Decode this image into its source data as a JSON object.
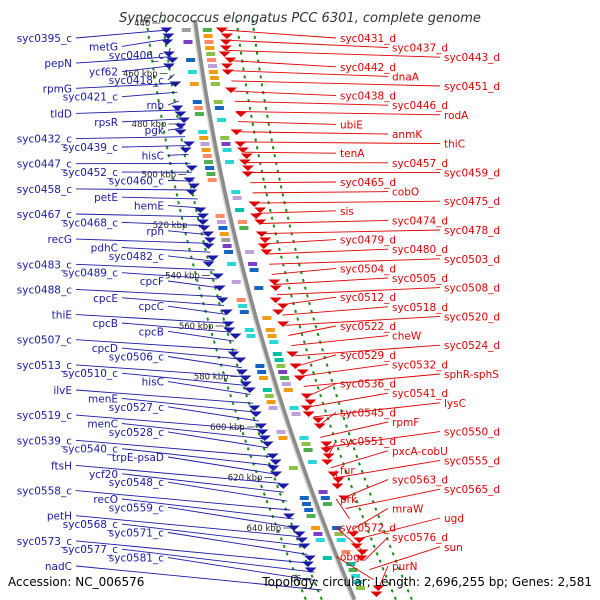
{
  "title": "Synechococcus elongatus PCC 6301, complete genome",
  "accession_text": "Accession: NC_006576",
  "summary_text": "Topology: circular; Length: 2,696,255 bp; Genes: 2,581",
  "colors": {
    "minus_strand": "#1a1aa6",
    "plus_strand": "#e00000",
    "backbone": "#8c8c8c",
    "track_border": "#1a8a1a"
  },
  "ticks": [
    "440",
    "460 kbp",
    "480 kbp",
    "500 kbp",
    "520 kbp",
    "540 kbp",
    "560 kbp",
    "580 kbp",
    "600 kbp",
    "620 kbp",
    "640 kbp",
    "66"
  ],
  "left_genes": [
    "syc0395_c",
    "metG",
    "syc0406_c",
    "pepN",
    "ycf62",
    "syc0418_c",
    "rpmG",
    "syc0421_c",
    "rnb",
    "tldD",
    "rpsR",
    "pgk",
    "syc0432_c",
    "syc0439_c",
    "hisC",
    "syc0447_c",
    "syc0452_c",
    "syc0460_c",
    "syc0458_c",
    "petE",
    "hemE",
    "syc0467_c",
    "syc0468_c",
    "rph",
    "recG",
    "pdhC",
    "syc0482_c",
    "syc0483_c",
    "syc0489_c",
    "cpcF",
    "syc0488_c",
    "cpcE",
    "cpcC",
    "thiE",
    "cpcB",
    "cpcB",
    "syc0507_c",
    "cpcD",
    "syc0506_c",
    "syc0513_c",
    "syc0510_c",
    "hisC",
    "ilvE",
    "menE",
    "syc0527_c",
    "syc0519_c",
    "menC",
    "syc0528_c",
    "syc0539_c",
    "syc0540_c",
    "trpE-psaD",
    "ftsH",
    "ycf20",
    "syc0548_c",
    "syc0558_c",
    "recO",
    "syc0559_c",
    "petH",
    "syc0568_c",
    "syc0571_c",
    "syc0573_c",
    "syc0577_c",
    "syc0581_c",
    "nadC"
  ],
  "right_genes": [
    "syc0431_d",
    "syc0437_d",
    "syc0443_d",
    "syc0442_d",
    "dnaA",
    "syc0451_d",
    "syc0438_d",
    "syc0446_d",
    "rodA",
    "ubiE",
    "anmK",
    "thiC",
    "tenA",
    "syc0457_d",
    "syc0459_d",
    "syc0465_d",
    "cobO",
    "syc0475_d",
    "sis",
    "syc0474_d",
    "syc0478_d",
    "syc0479_d",
    "syc0480_d",
    "syc0503_d",
    "syc0504_d",
    "syc0505_d",
    "syc0508_d",
    "syc0512_d",
    "syc0518_d",
    "syc0520_d",
    "syc0522_d",
    "cheW",
    "syc0524_d",
    "syc0529_d",
    "syc0532_d",
    "sphR-sphS",
    "syc0536_d",
    "syc0541_d",
    "lysC",
    "syc0545_d",
    "rpmF",
    "syc0550_d",
    "syc0551_d",
    "pxcA-cobU",
    "syc0555_d",
    "fur",
    "syc0563_d",
    "syc0565_d",
    "prk",
    "mraW",
    "ugd",
    "syc0572_d",
    "syc0576_d",
    "sun",
    "obgE",
    "purN"
  ]
}
